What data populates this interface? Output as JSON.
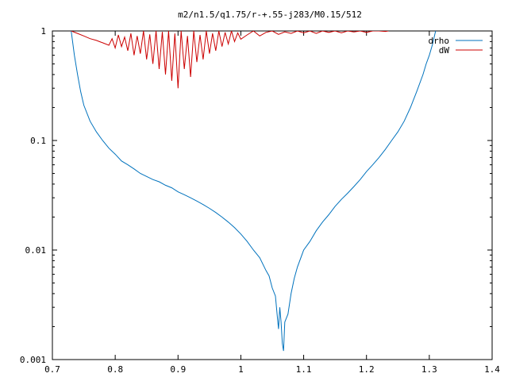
{
  "chart_data": {
    "type": "line",
    "title": "m2/n1.5/q1.75/r-+.55-j283/M0.15/512",
    "xlabel": "",
    "ylabel": "",
    "xlim": [
      0.7,
      1.4
    ],
    "ylim": [
      0.001,
      1
    ],
    "yscale": "log",
    "grid": false,
    "legend_position": "top-right",
    "x_ticks": [
      {
        "value": 0.7,
        "label": "0.7"
      },
      {
        "value": 0.8,
        "label": "0.8"
      },
      {
        "value": 0.9,
        "label": "0.9"
      },
      {
        "value": 1.0,
        "label": "1"
      },
      {
        "value": 1.1,
        "label": "1.1"
      },
      {
        "value": 1.2,
        "label": "1.2"
      },
      {
        "value": 1.3,
        "label": "1.3"
      },
      {
        "value": 1.4,
        "label": "1.4"
      }
    ],
    "y_ticks": [
      {
        "value": 1,
        "label": "1"
      },
      {
        "value": 0.1,
        "label": "0.1"
      },
      {
        "value": 0.01,
        "label": "0.01"
      },
      {
        "value": 0.001,
        "label": "0.001"
      }
    ],
    "series": [
      {
        "name": "drho",
        "color": "#0072bd",
        "x": [
          0.73,
          0.735,
          0.74,
          0.745,
          0.75,
          0.76,
          0.77,
          0.78,
          0.79,
          0.8,
          0.81,
          0.82,
          0.83,
          0.84,
          0.85,
          0.86,
          0.87,
          0.88,
          0.89,
          0.9,
          0.91,
          0.92,
          0.93,
          0.94,
          0.95,
          0.96,
          0.97,
          0.98,
          0.99,
          1.0,
          1.01,
          1.02,
          1.03,
          1.04,
          1.045,
          1.05,
          1.055,
          1.058,
          1.06,
          1.062,
          1.064,
          1.066,
          1.068,
          1.07,
          1.075,
          1.08,
          1.085,
          1.09,
          1.1,
          1.11,
          1.12,
          1.13,
          1.14,
          1.15,
          1.16,
          1.17,
          1.18,
          1.19,
          1.2,
          1.21,
          1.22,
          1.23,
          1.24,
          1.25,
          1.26,
          1.27,
          1.28,
          1.29,
          1.295,
          1.3,
          1.305,
          1.31
        ],
        "y": [
          1.0,
          0.6,
          0.4,
          0.28,
          0.21,
          0.15,
          0.12,
          0.1,
          0.085,
          0.075,
          0.065,
          0.06,
          0.055,
          0.05,
          0.047,
          0.044,
          0.042,
          0.039,
          0.037,
          0.034,
          0.032,
          0.03,
          0.028,
          0.026,
          0.024,
          0.022,
          0.02,
          0.018,
          0.016,
          0.014,
          0.012,
          0.01,
          0.0085,
          0.0065,
          0.0058,
          0.0045,
          0.0038,
          0.0025,
          0.0019,
          0.003,
          0.0022,
          0.0014,
          0.0012,
          0.0022,
          0.0026,
          0.004,
          0.0055,
          0.007,
          0.01,
          0.012,
          0.015,
          0.018,
          0.021,
          0.025,
          0.029,
          0.033,
          0.038,
          0.044,
          0.052,
          0.06,
          0.07,
          0.083,
          0.1,
          0.12,
          0.15,
          0.2,
          0.28,
          0.4,
          0.5,
          0.6,
          0.75,
          1.0
        ]
      },
      {
        "name": "dW",
        "color": "#cc0000",
        "x": [
          0.73,
          0.74,
          0.75,
          0.76,
          0.77,
          0.78,
          0.79,
          0.795,
          0.8,
          0.805,
          0.81,
          0.815,
          0.82,
          0.825,
          0.83,
          0.835,
          0.84,
          0.845,
          0.85,
          0.855,
          0.86,
          0.865,
          0.87,
          0.875,
          0.88,
          0.885,
          0.89,
          0.895,
          0.9,
          0.905,
          0.91,
          0.915,
          0.92,
          0.925,
          0.93,
          0.935,
          0.94,
          0.945,
          0.95,
          0.955,
          0.96,
          0.965,
          0.97,
          0.975,
          0.98,
          0.985,
          0.99,
          0.995,
          1.0,
          1.01,
          1.02,
          1.03,
          1.04,
          1.05,
          1.06,
          1.07,
          1.08,
          1.09,
          1.1,
          1.11,
          1.12,
          1.13,
          1.14,
          1.15,
          1.16,
          1.17,
          1.18,
          1.19,
          1.2,
          1.21,
          1.22,
          1.23,
          1.235
        ],
        "y": [
          1.0,
          0.95,
          0.9,
          0.85,
          0.82,
          0.78,
          0.74,
          0.85,
          0.7,
          0.92,
          0.72,
          0.88,
          0.66,
          0.95,
          0.6,
          0.9,
          0.62,
          1.0,
          0.55,
          0.93,
          0.5,
          1.0,
          0.45,
          0.98,
          0.4,
          1.0,
          0.35,
          0.95,
          0.3,
          1.0,
          0.45,
          0.9,
          0.38,
          1.0,
          0.52,
          0.92,
          0.55,
          1.0,
          0.62,
          0.95,
          0.66,
          1.0,
          0.72,
          0.97,
          0.76,
          1.0,
          0.8,
          0.96,
          0.84,
          0.92,
          1.0,
          0.9,
          0.97,
          1.0,
          0.93,
          0.98,
          0.95,
          1.0,
          0.96,
          1.0,
          0.95,
          1.0,
          0.97,
          1.0,
          0.96,
          1.0,
          0.98,
          1.0,
          0.97,
          1.0,
          1.0,
          0.99,
          1.0
        ]
      }
    ]
  }
}
